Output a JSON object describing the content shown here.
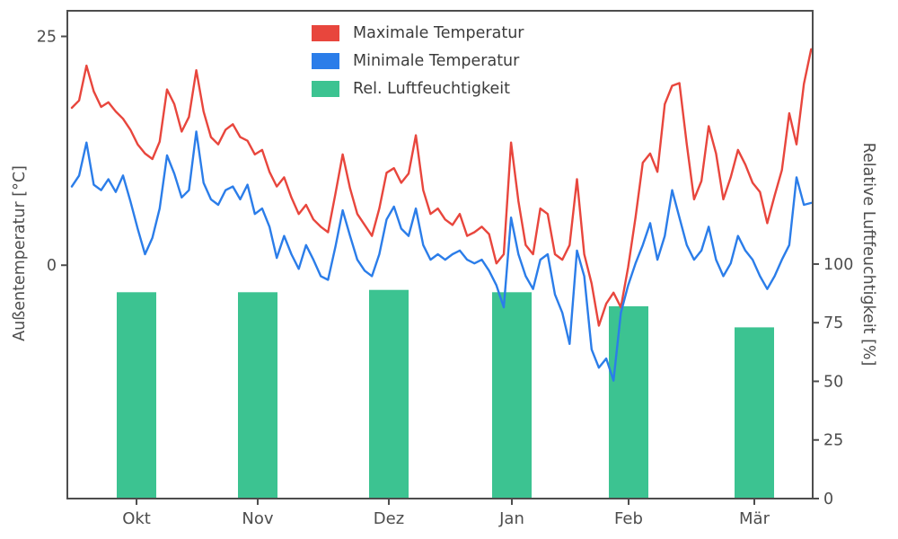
{
  "chart_data": {
    "type": "line+bar",
    "title": "",
    "left_axis": {
      "label": "Außentemperatur [°C]",
      "ticks": [
        "0",
        "25"
      ],
      "tick_values": [
        0,
        25
      ],
      "range": [
        -25.5,
        27.8
      ]
    },
    "right_axis": {
      "label": "Relative Luftfeuchtigkeit [%]",
      "ticks": [
        "0",
        "25",
        "50",
        "75",
        "100"
      ],
      "tick_values": [
        0,
        25,
        50,
        75,
        100
      ],
      "range": [
        0,
        208
      ]
    },
    "x_axis": {
      "labels": [
        "Okt",
        "Nov",
        "Dez",
        "Jan",
        "Feb",
        "Mär"
      ],
      "positions": [
        0.0928,
        0.2554,
        0.4313,
        0.5964,
        0.753,
        0.9217
      ]
    },
    "legend": {
      "position": "upper center-left",
      "entries": [
        "Maximale Temperatur",
        "Minimale Temperatur",
        "Rel. Luftfeuchtigkeit"
      ]
    },
    "grid": false,
    "frame_color": "#4d4d4d",
    "series": [
      {
        "name": "Maximale Temperatur",
        "type": "line",
        "axis": "left",
        "color": "#e8463d",
        "values": [
          17.2,
          18.0,
          21.8,
          19.0,
          17.3,
          17.8,
          16.8,
          16.0,
          14.8,
          13.2,
          12.2,
          11.6,
          13.5,
          19.2,
          17.6,
          14.6,
          16.2,
          21.3,
          16.8,
          14.0,
          13.2,
          14.8,
          15.4,
          14.0,
          13.6,
          12.1,
          12.6,
          10.2,
          8.6,
          9.6,
          7.4,
          5.6,
          6.6,
          5.0,
          4.2,
          3.6,
          7.8,
          12.1,
          8.4,
          5.6,
          4.4,
          3.2,
          6.2,
          10.1,
          10.6,
          9.0,
          10.0,
          14.2,
          8.2,
          5.6,
          6.2,
          5.0,
          4.4,
          5.6,
          3.2,
          3.6,
          4.2,
          3.4,
          0.2,
          1.2,
          13.4,
          7.0,
          2.2,
          1.2,
          6.2,
          5.6,
          1.2,
          0.6,
          2.2,
          9.4,
          1.2,
          -2.0,
          -6.6,
          -4.2,
          -3.0,
          -4.6,
          -0.2,
          5.2,
          11.2,
          12.2,
          10.2,
          17.6,
          19.6,
          19.9,
          13.2,
          7.2,
          9.2,
          15.2,
          12.2,
          7.2,
          9.6,
          12.6,
          11.0,
          9.0,
          8.0,
          4.6,
          7.6,
          10.4,
          16.6,
          13.2,
          19.8,
          23.6
        ]
      },
      {
        "name": "Minimale Temperatur",
        "type": "line",
        "axis": "left",
        "color": "#2b7de9",
        "values": [
          8.6,
          9.8,
          13.4,
          8.8,
          8.2,
          9.4,
          8.0,
          9.8,
          7.0,
          4.0,
          1.2,
          3.0,
          6.2,
          12.0,
          10.0,
          7.4,
          8.2,
          14.6,
          9.0,
          7.2,
          6.6,
          8.2,
          8.6,
          7.2,
          8.8,
          5.6,
          6.2,
          4.2,
          0.8,
          3.2,
          1.2,
          -0.4,
          2.2,
          0.6,
          -1.2,
          -1.6,
          2.0,
          6.0,
          3.2,
          0.6,
          -0.6,
          -1.2,
          1.2,
          5.0,
          6.4,
          4.0,
          3.2,
          6.2,
          2.2,
          0.6,
          1.2,
          0.6,
          1.2,
          1.6,
          0.6,
          0.2,
          0.6,
          -0.6,
          -2.2,
          -4.6,
          5.2,
          1.2,
          -1.2,
          -2.6,
          0.6,
          1.2,
          -3.2,
          -5.2,
          -8.6,
          1.6,
          -1.2,
          -9.2,
          -11.2,
          -10.2,
          -12.6,
          -5.2,
          -2.2,
          0.2,
          2.2,
          4.6,
          0.6,
          3.2,
          8.2,
          5.2,
          2.2,
          0.6,
          1.6,
          4.2,
          0.6,
          -1.2,
          0.2,
          3.2,
          1.6,
          0.6,
          -1.2,
          -2.6,
          -1.2,
          0.6,
          2.2,
          9.6,
          6.6,
          6.8
        ]
      },
      {
        "name": "Rel. Luftfeuchtigkeit",
        "type": "bar",
        "axis": "right",
        "color": "#3cc391",
        "x_positions": [
          0.0928,
          0.2554,
          0.4313,
          0.5964,
          0.753,
          0.9217
        ],
        "bar_width_frac": 0.053,
        "values": [
          88,
          88,
          89,
          88,
          82,
          73
        ]
      }
    ]
  }
}
